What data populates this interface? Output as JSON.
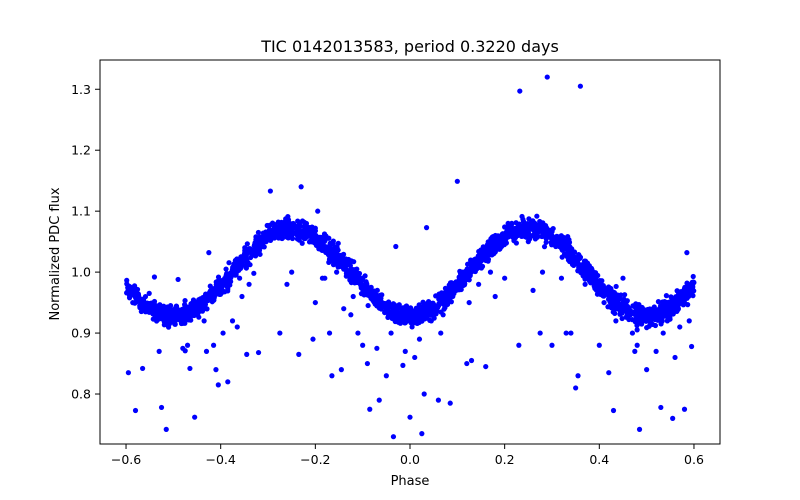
{
  "chart_data": {
    "type": "scatter",
    "title": "TIC 0142013583, period 0.3220 days",
    "xlabel": "Phase",
    "ylabel": "Normalized PDC flux",
    "xlim": [
      -0.655,
      0.655
    ],
    "ylim": [
      0.718,
      1.348
    ],
    "xticks": [
      -0.6,
      -0.4,
      -0.2,
      0.0,
      0.2,
      0.4,
      0.6
    ],
    "xtick_labels": [
      "−0.6",
      "−0.4",
      "−0.2",
      "0.0",
      "0.2",
      "0.4",
      "0.6"
    ],
    "yticks": [
      0.8,
      0.9,
      1.0,
      1.1,
      1.2,
      1.3
    ],
    "ytick_labels": [
      "0.8",
      "0.9",
      "1.0",
      "1.1",
      "1.2",
      "1.3"
    ],
    "grid": false,
    "marker_color": "#0000ff",
    "series": [
      {
        "curve_model": {
          "x_range": [
            -0.6,
            0.6
          ],
          "mean": 1.0,
          "amplitude": 0.072,
          "cycles_per_unit_phase": 2,
          "peaks_at": [
            -0.25,
            0.25
          ],
          "troughs_at": [
            -0.5,
            0.0,
            0.5
          ],
          "scatter": 0.008
        },
        "outliers": [
          [
            -0.595,
            0.835
          ],
          [
            -0.58,
            0.773
          ],
          [
            -0.565,
            0.842
          ],
          [
            -0.54,
            0.992
          ],
          [
            -0.53,
            0.87
          ],
          [
            -0.525,
            0.778
          ],
          [
            -0.515,
            0.742
          ],
          [
            -0.49,
            0.988
          ],
          [
            -0.48,
            0.875
          ],
          [
            -0.475,
            0.871
          ],
          [
            -0.47,
            0.88
          ],
          [
            -0.465,
            0.842
          ],
          [
            -0.455,
            0.762
          ],
          [
            -0.445,
            0.95
          ],
          [
            -0.435,
            0.92
          ],
          [
            -0.43,
            0.87
          ],
          [
            -0.425,
            1.032
          ],
          [
            -0.415,
            0.88
          ],
          [
            -0.41,
            0.84
          ],
          [
            -0.405,
            0.815
          ],
          [
            -0.395,
            0.9
          ],
          [
            -0.385,
            0.82
          ],
          [
            -0.375,
            0.92
          ],
          [
            -0.365,
            0.91
          ],
          [
            -0.36,
            0.99
          ],
          [
            -0.355,
            0.96
          ],
          [
            -0.345,
            0.865
          ],
          [
            -0.34,
            0.98
          ],
          [
            -0.33,
            0.998
          ],
          [
            -0.32,
            0.868
          ],
          [
            -0.295,
            1.133
          ],
          [
            -0.275,
            0.9
          ],
          [
            -0.26,
            0.98
          ],
          [
            -0.25,
            1.0
          ],
          [
            -0.235,
            0.865
          ],
          [
            -0.23,
            1.14
          ],
          [
            -0.215,
            1.06
          ],
          [
            -0.205,
            0.89
          ],
          [
            -0.2,
            0.95
          ],
          [
            -0.195,
            1.1
          ],
          [
            -0.185,
            0.99
          ],
          [
            -0.18,
            0.99
          ],
          [
            -0.17,
            0.9
          ],
          [
            -0.165,
            0.83
          ],
          [
            -0.155,
            1.0
          ],
          [
            -0.145,
            0.84
          ],
          [
            -0.14,
            0.94
          ],
          [
            -0.125,
            0.93
          ],
          [
            -0.12,
            0.96
          ],
          [
            -0.11,
            0.9
          ],
          [
            -0.1,
            0.88
          ],
          [
            -0.09,
            0.85
          ],
          [
            -0.085,
            0.775
          ],
          [
            -0.07,
            0.875
          ],
          [
            -0.065,
            0.79
          ],
          [
            -0.05,
            0.83
          ],
          [
            -0.04,
            0.9
          ],
          [
            -0.035,
            0.73
          ],
          [
            -0.03,
            1.042
          ],
          [
            -0.015,
            0.847
          ],
          [
            -0.01,
            0.87
          ],
          [
            0.0,
            0.762
          ],
          [
            0.01,
            0.86
          ],
          [
            0.02,
            0.89
          ],
          [
            0.025,
            0.735
          ],
          [
            0.03,
            0.8
          ],
          [
            0.035,
            1.073
          ],
          [
            0.045,
            0.92
          ],
          [
            0.06,
            0.79
          ],
          [
            0.065,
            0.9
          ],
          [
            0.07,
            0.93
          ],
          [
            0.08,
            0.95
          ],
          [
            0.085,
            0.785
          ],
          [
            0.09,
            0.98
          ],
          [
            0.1,
            1.149
          ],
          [
            0.11,
            1.0
          ],
          [
            0.12,
            0.85
          ],
          [
            0.125,
            0.95
          ],
          [
            0.13,
            0.855
          ],
          [
            0.145,
            0.98
          ],
          [
            0.16,
            0.845
          ],
          [
            0.17,
            1.0
          ],
          [
            0.18,
            0.96
          ],
          [
            0.2,
            0.99
          ],
          [
            0.215,
            1.08
          ],
          [
            0.23,
            0.88
          ],
          [
            0.232,
            1.297
          ],
          [
            0.25,
            1.05
          ],
          [
            0.26,
            0.97
          ],
          [
            0.275,
            0.9
          ],
          [
            0.28,
            1.0
          ],
          [
            0.29,
            1.32
          ],
          [
            0.3,
            0.88
          ],
          [
            0.31,
            1.05
          ],
          [
            0.32,
            0.99
          ],
          [
            0.33,
            0.9
          ],
          [
            0.34,
            0.9
          ],
          [
            0.35,
            0.81
          ],
          [
            0.355,
            0.83
          ],
          [
            0.36,
            1.305
          ],
          [
            0.37,
            0.98
          ],
          [
            0.38,
            1.0
          ],
          [
            0.4,
            0.88
          ],
          [
            0.41,
            0.95
          ],
          [
            0.42,
            0.835
          ],
          [
            0.43,
            0.773
          ],
          [
            0.435,
            0.92
          ],
          [
            0.45,
            0.99
          ],
          [
            0.47,
            0.9
          ],
          [
            0.475,
            0.87
          ],
          [
            0.48,
            0.88
          ],
          [
            0.485,
            0.742
          ],
          [
            0.5,
            0.84
          ],
          [
            0.51,
            0.93
          ],
          [
            0.52,
            0.87
          ],
          [
            0.53,
            0.778
          ],
          [
            0.535,
            0.9
          ],
          [
            0.545,
            0.935
          ],
          [
            0.555,
            0.76
          ],
          [
            0.56,
            0.86
          ],
          [
            0.57,
            0.91
          ],
          [
            0.58,
            0.775
          ],
          [
            0.585,
            1.032
          ],
          [
            0.59,
            0.92
          ],
          [
            0.595,
            0.878
          ]
        ]
      }
    ]
  }
}
